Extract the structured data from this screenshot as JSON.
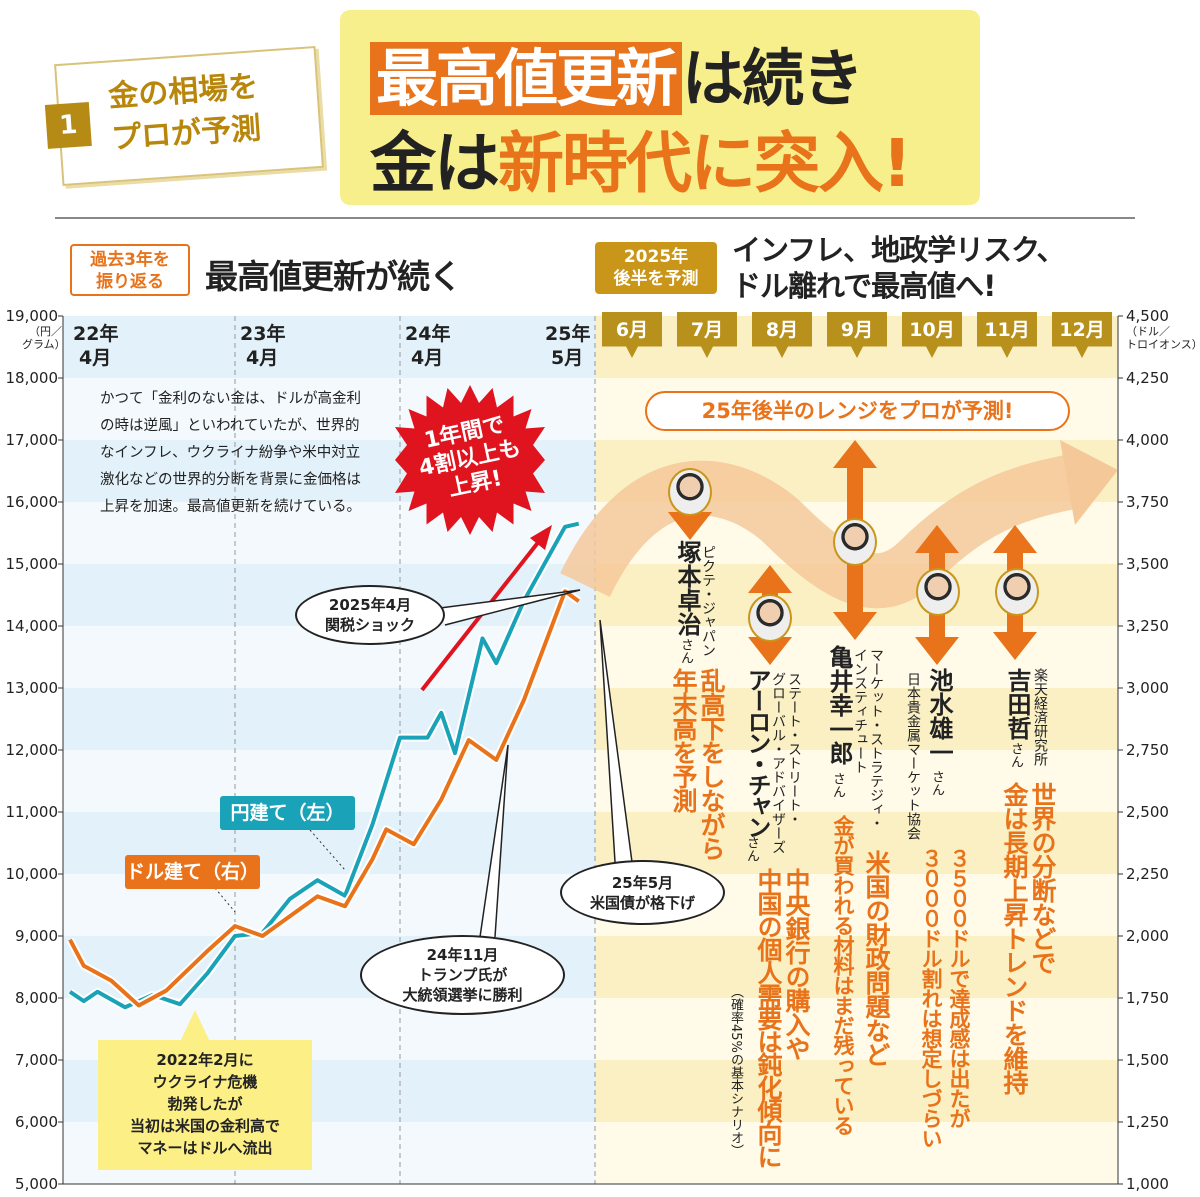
{
  "badge": {
    "number": "1",
    "line1": "金の相場を",
    "line2": "プロが予測"
  },
  "title": {
    "highlight": "最高値更新",
    "line1_rest": "は続き",
    "line2_a": "金は",
    "line2_b": "新時代に突入!"
  },
  "left_section": {
    "tag_line1": "過去3年を",
    "tag_line2": "振り返る",
    "heading": "最高値更新が続く"
  },
  "right_section": {
    "tag_line1": "2025年",
    "tag_line2": "後半を予測",
    "heading_line1": "インフレ、地政学リスク、",
    "heading_line2": "ドル離れで最高値へ!"
  },
  "months": [
    "6月",
    "7月",
    "8月",
    "9月",
    "10月",
    "11月",
    "12月"
  ],
  "range_banner": "25年後半のレンジをプロが予測!",
  "description": "かつて「金利のない金は、ドルが高金利の時は逆風」といわれていたが、世界的なインフレ、ウクライナ紛争や米中対立激化などの世界的分断を背景に金価格は上昇を加速。最高値更新を続けている。",
  "burst": {
    "line1": "1年間で",
    "line2": "4割以上も",
    "line3": "上昇!"
  },
  "callouts": {
    "tariff": {
      "line1": "2025年4月",
      "line2": "関税ショック"
    },
    "trump": {
      "line1": "24年11月",
      "line2": "トランプ氏が",
      "line3": "大統領選挙に勝利"
    },
    "downgrade": {
      "line1": "25年5月",
      "line2": "米国債が格下げ"
    },
    "ukraine": {
      "line1": "2022年2月に",
      "line2": "ウクライナ危機",
      "line3": "勃発したが",
      "line4": "当初は米国の金利高で",
      "line5": "マネーはドルへ流出"
    }
  },
  "experts": [
    {
      "org": "ピクテ・ジャパン",
      "name": "塚本卓治",
      "suffix": "さん",
      "pred1": "乱高下をしながら",
      "pred2": "年末高を予測"
    },
    {
      "org1": "ステート・ストリート・",
      "org2": "グローバル・アドバイザーズ",
      "name": "アーロン・チャン",
      "suffix": "さん",
      "pred1": "中央銀行の購入や",
      "pred2": "中国の個人需要は鈍化傾向に",
      "note": "（確率45%の基本シナリオ）"
    },
    {
      "org1": "マーケット・ストラテジィ・",
      "org2": "インスティチュート",
      "name": "亀井幸一郎",
      "suffix": "さん",
      "pred1": "米国の財政問題など",
      "pred2": "金が買われる材料はまだ残っている"
    },
    {
      "org": "日本貴金属マーケット協会",
      "name": "池水雄一",
      "suffix": "さん",
      "pred1": "３５００ドルで達成感は出たが",
      "pred2": "３０００ドル割れは想定しづらい"
    },
    {
      "org": "楽天経済研究所",
      "name": "吉田哲",
      "suffix": "さん",
      "pred1": "世界の分断などで",
      "pred2": "金は長期上昇トレンドを維持"
    }
  ],
  "colors": {
    "yen": "#1aa3b8",
    "dollar": "#e8731a",
    "accent": "#e8731a",
    "gold": "#b8901c",
    "burst": "#e0141e"
  },
  "chart_data": {
    "type": "line",
    "x_tick_labels": [
      {
        "year": "22年",
        "month": "4月"
      },
      {
        "year": "23年",
        "month": "4月"
      },
      {
        "year": "24年",
        "month": "4月"
      },
      {
        "year": "25年",
        "month": "5月"
      }
    ],
    "y_left": {
      "unit_line1": "（円／",
      "unit_line2": "グラム）",
      "range": [
        5000,
        19000
      ],
      "ticks": [
        "5,000",
        "6,000",
        "7,000",
        "8,000",
        "9,000",
        "10,000",
        "11,000",
        "12,000",
        "13,000",
        "14,000",
        "15,000",
        "16,000",
        "17,000",
        "18,000",
        "19,000"
      ]
    },
    "y_right": {
      "unit_line1": "（ドル／",
      "unit_line2": "トロイオンス）",
      "range": [
        1000,
        4500
      ],
      "ticks": [
        "1,000",
        "1,250",
        "1,500",
        "1,750",
        "2,000",
        "2,250",
        "2,500",
        "2,750",
        "3,000",
        "3,250",
        "3,500",
        "3,750",
        "4,000",
        "4,250",
        "4,500"
      ]
    },
    "series": [
      {
        "name": "円建て（左）",
        "axis": "left",
        "points": [
          [
            "2022-04",
            8100
          ],
          [
            "2022-05",
            7950
          ],
          [
            "2022-06",
            8100
          ],
          [
            "2022-08",
            7850
          ],
          [
            "2022-10",
            8050
          ],
          [
            "2022-12",
            7900
          ],
          [
            "2023-02",
            8400
          ],
          [
            "2023-04",
            9000
          ],
          [
            "2023-06",
            9050
          ],
          [
            "2023-08",
            9600
          ],
          [
            "2023-10",
            9900
          ],
          [
            "2023-12",
            9650
          ],
          [
            "2024-02",
            10800
          ],
          [
            "2024-04",
            12200
          ],
          [
            "2024-06",
            12200
          ],
          [
            "2024-07",
            12600
          ],
          [
            "2024-08",
            11950
          ],
          [
            "2024-10",
            13800
          ],
          [
            "2024-11",
            13400
          ],
          [
            "2025-01",
            14400
          ],
          [
            "2025-04",
            15600
          ],
          [
            "2025-05",
            15650
          ]
        ]
      },
      {
        "name": "ドル建て（右）",
        "axis": "right",
        "points": [
          [
            "2022-04",
            1985
          ],
          [
            "2022-05",
            1880
          ],
          [
            "2022-07",
            1820
          ],
          [
            "2022-09",
            1720
          ],
          [
            "2022-11",
            1780
          ],
          [
            "2023-02",
            1940
          ],
          [
            "2023-04",
            2040
          ],
          [
            "2023-06",
            2000
          ],
          [
            "2023-08",
            2080
          ],
          [
            "2023-10",
            2160
          ],
          [
            "2023-12",
            2120
          ],
          [
            "2024-02",
            2310
          ],
          [
            "2024-03",
            2430
          ],
          [
            "2024-05",
            2370
          ],
          [
            "2024-07",
            2550
          ],
          [
            "2024-09",
            2790
          ],
          [
            "2024-10",
            2750
          ],
          [
            "2024-11",
            2710
          ],
          [
            "2025-01",
            2950
          ],
          [
            "2025-04",
            3390
          ],
          [
            "2025-05",
            3350
          ]
        ]
      }
    ]
  }
}
